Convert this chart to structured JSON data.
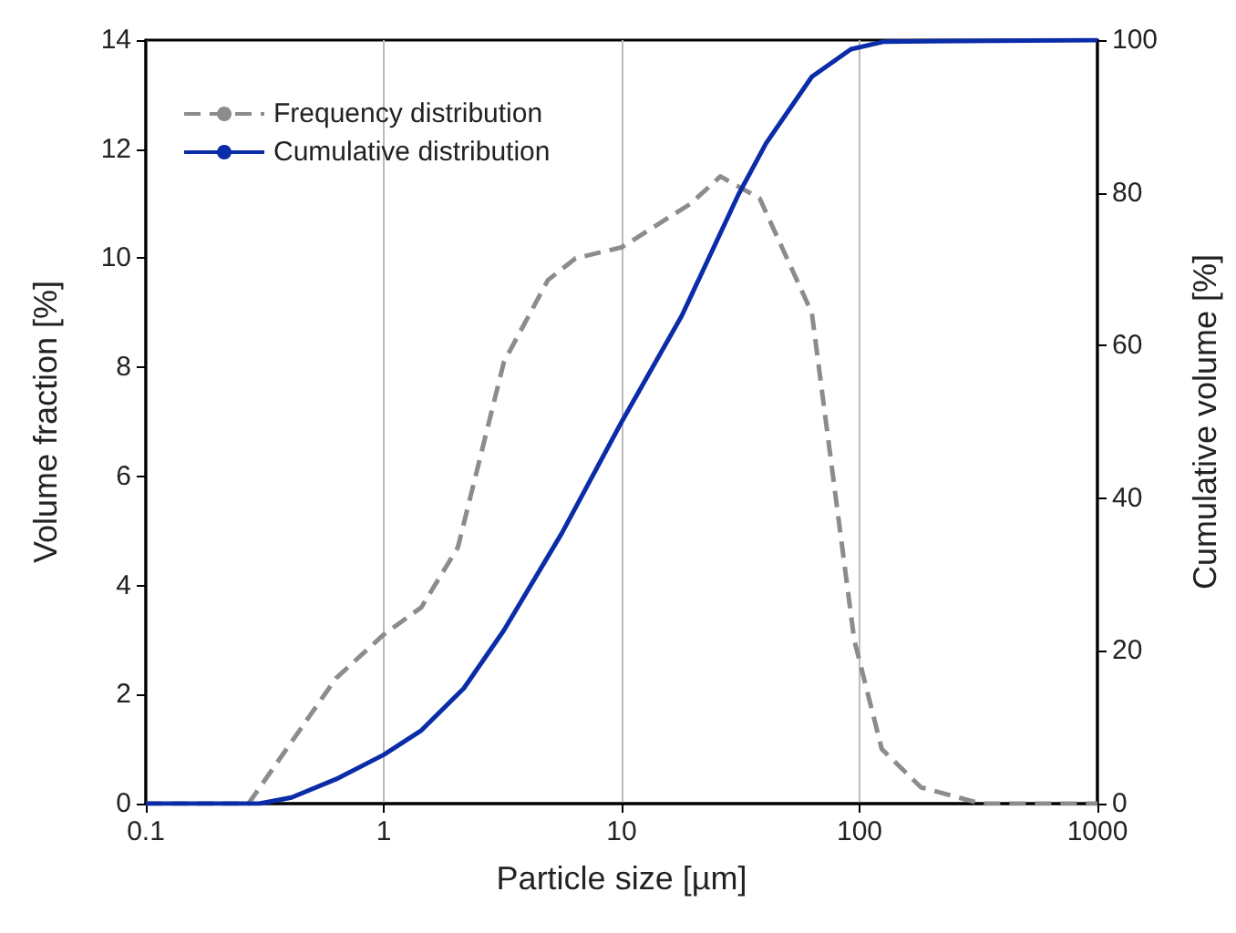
{
  "chart_data": {
    "type": "line",
    "xlabel": "Particle size [µm]",
    "ylabel": "Volume fraction [%]",
    "y2label": "Cumulative volume [%]",
    "log": "x",
    "grid": "x",
    "legend": "top left",
    "marker": "none",
    "xlim": [
      0.1,
      1000
    ],
    "xticks": [
      0.1,
      1,
      10,
      100,
      1000
    ],
    "ylim": [
      0,
      14
    ],
    "yticks": [
      0,
      2,
      4,
      6,
      8,
      10,
      12,
      14
    ],
    "y2lim": [
      0,
      100
    ],
    "y2ticks": [
      0,
      20,
      40,
      60,
      80,
      100
    ],
    "series": [
      {
        "name": "Frequency distribution",
        "color": "#8c8c8c",
        "line_style": "dashed",
        "x": [
          0.1,
          0.27,
          0.63,
          1,
          1.44,
          2.05,
          3.2,
          4.9,
          6.4,
          10,
          19.5,
          26,
          38,
          63,
          95,
          124,
          181,
          324,
          1000
        ],
        "values": [
          0,
          0,
          2.3,
          3.1,
          3.6,
          4.7,
          8.1,
          9.6,
          10.0,
          10.2,
          11.0,
          11.5,
          11.1,
          9.0,
          3.0,
          1.0,
          0.3,
          0,
          0
        ]
      },
      {
        "name": "Cumulative distribution",
        "color": "#0a2ca8",
        "line_style": "solid",
        "axis": "y2",
        "x": [
          0.1,
          0.3,
          0.41,
          0.63,
          1,
          1.44,
          2.17,
          3.2,
          5.6,
          10,
          17.9,
          31,
          40.5,
          63,
          92,
          127,
          1000
        ],
        "values": [
          0,
          0,
          0.8,
          3.2,
          6.4,
          9.6,
          15.1,
          22.7,
          35.4,
          50,
          63.9,
          79.8,
          86.5,
          95.2,
          98.8,
          99.8,
          100
        ]
      }
    ]
  }
}
